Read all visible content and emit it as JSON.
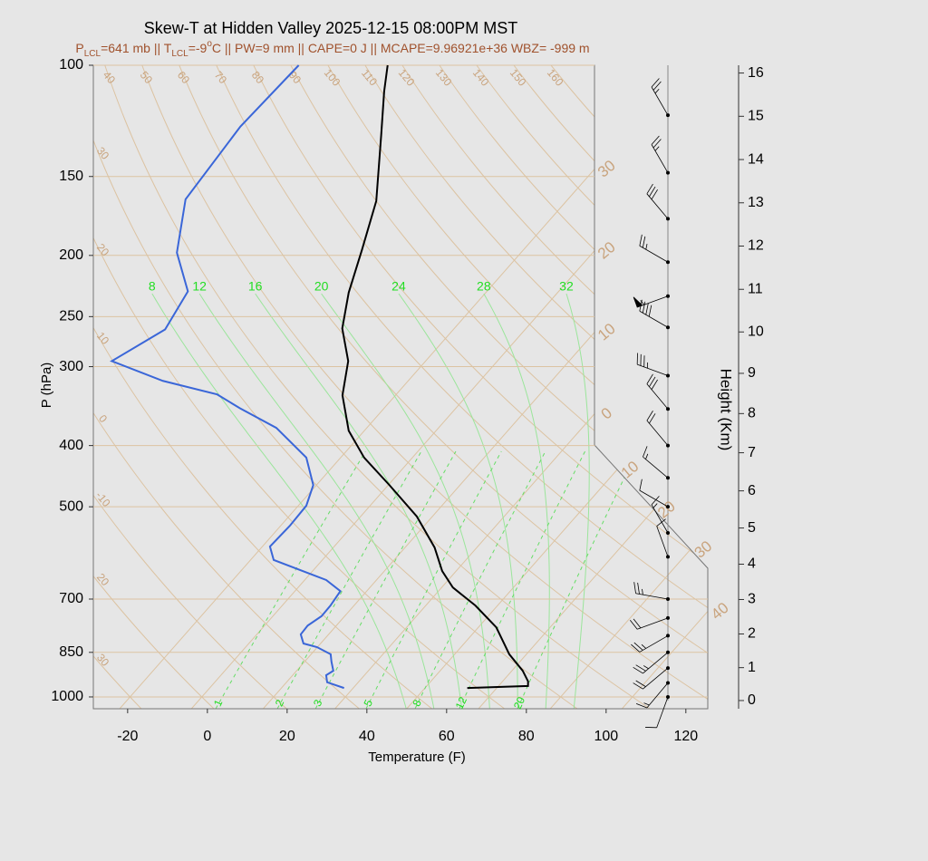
{
  "chart_data": {
    "type": "skewt",
    "title": "Skew-T at Hidden Valley 2025-12-15 08:00PM MST",
    "subtitle": [
      "P",
      "LCL",
      "=641 mb || T",
      "LCL",
      "=-9",
      "o",
      "C || PW=9 mm || CAPE=0 J || MCAPE=9.96921e+36 WBZ= -999 m"
    ],
    "xlabel": "Temperature (F)",
    "ylabel": "P (hPa)",
    "xlim": [
      -28.6,
      125.5
    ],
    "xticks": [
      -20,
      0,
      20,
      40,
      60,
      80,
      100,
      120
    ],
    "ylim": [
      1044,
      100
    ],
    "yticks": [
      100,
      150,
      200,
      250,
      300,
      400,
      500,
      700,
      850,
      1000
    ],
    "log_y": true,
    "grid": true,
    "series": [
      {
        "color": "#000000",
        "pressure": [
          100,
          110,
          129,
          164,
          196,
          229,
          261,
          294,
          333,
          379,
          418,
          462,
          518,
          580,
          632,
          671,
          717,
          776,
          856,
          909,
          945,
          961,
          968
        ],
        "values": [
          -96.8,
          -91.9,
          -83.0,
          -69.7,
          -62.5,
          -56.4,
          -50.1,
          -41.4,
          -35.3,
          -25.9,
          -16.1,
          -3.7,
          10.1,
          21.4,
          28.5,
          34.8,
          44.5,
          54.5,
          63.7,
          70.7,
          74.4,
          75.4,
          60.6
        ]
      },
      {
        "color": "#3a66d8",
        "pressure": [
          100,
          125,
          163,
          198,
          228,
          262,
          294,
          316,
          332,
          349,
          375,
          418,
          462,
          498,
          536,
          578,
          607,
          653,
          680,
          717,
          745,
          771,
          796,
          823,
          834,
          856,
          879,
          909,
          924,
          948,
          968
        ],
        "values": [
          -119.1,
          -120.2,
          -117.9,
          -108.3,
          -97.0,
          -94.3,
          -100.7,
          -83.5,
          -66.9,
          -58.2,
          -44.7,
          -30.6,
          -22.8,
          -20.0,
          -19.7,
          -20.1,
          -16.2,
          1.4,
          7.4,
          8.1,
          8.2,
          6.8,
          7.0,
          9.7,
          13.9,
          18.9,
          20.7,
          23.2,
          22.4,
          24.2,
          29.7
        ]
      }
    ],
    "dry_adiabats": [
      {
        "value": -30,
        "label": "30"
      },
      {
        "value": -20,
        "label": "20"
      },
      -10,
      0,
      10,
      20,
      30,
      40,
      50,
      60,
      70,
      80,
      90,
      100,
      110,
      120,
      130,
      140,
      150,
      160
    ],
    "isotherms": [
      {
        "value": -30,
        "label": "30"
      },
      {
        "value": -20,
        "label": "20"
      },
      {
        "value": -10,
        "label": "10"
      },
      0,
      10,
      20,
      30,
      40
    ],
    "moist_adiabats": [
      8,
      12,
      16,
      20,
      24,
      28,
      32
    ],
    "mixing_ratios": [
      1,
      2,
      3,
      5,
      8,
      12,
      20
    ],
    "height_label": "Height (Km)",
    "height_ticks": [
      0,
      1,
      2,
      3,
      4,
      5,
      6,
      7,
      8,
      9,
      10,
      11,
      12,
      13,
      14,
      15,
      16
    ],
    "wind": {
      "pressure": [
        120,
        148,
        175,
        205,
        232,
        260,
        310,
        350,
        400,
        450,
        500,
        550,
        600,
        700,
        750,
        800,
        850,
        900,
        950,
        1000
      ],
      "direction": [
        330,
        330,
        320,
        300,
        250,
        300,
        290,
        320,
        320,
        310,
        300,
        330,
        340,
        280,
        250,
        240,
        230,
        230,
        220,
        200
      ],
      "speed": [
        25,
        25,
        30,
        25,
        55,
        40,
        35,
        30,
        20,
        15,
        10,
        15,
        10,
        25,
        20,
        25,
        25,
        20,
        15,
        10
      ]
    }
  }
}
